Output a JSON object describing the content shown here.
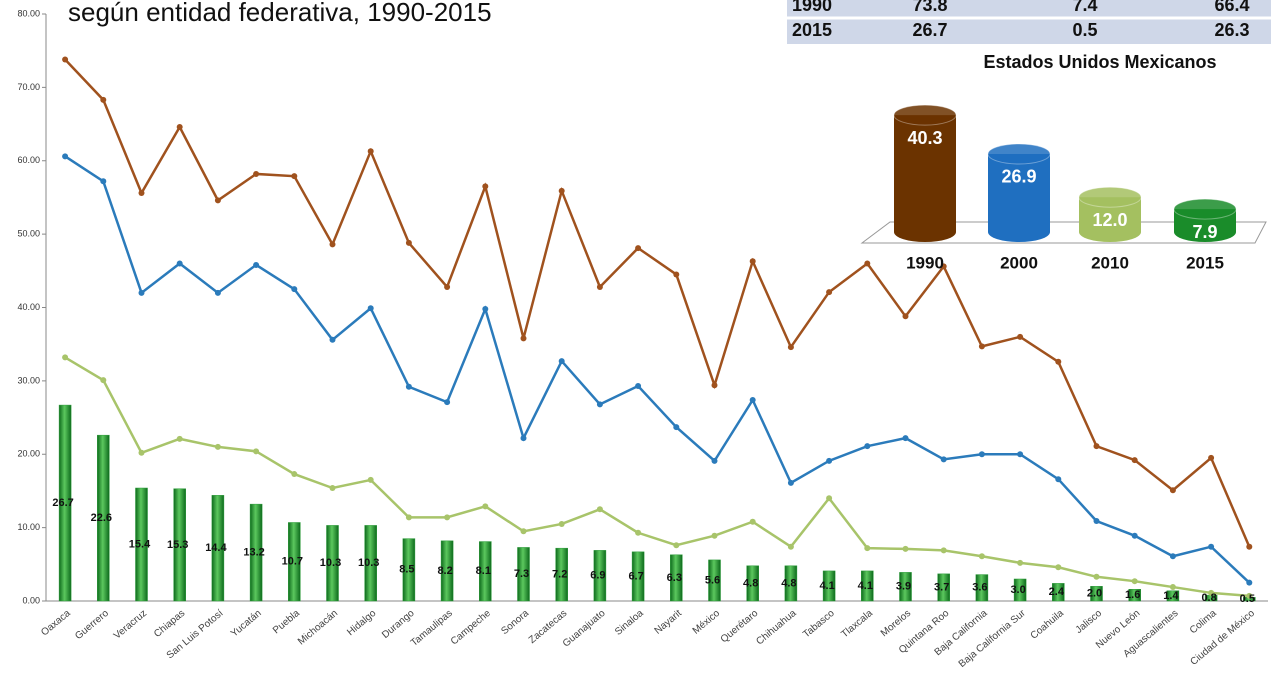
{
  "title": "según entidad federativa, 1990-2015",
  "table": {
    "rows": [
      [
        "1990",
        "73.8",
        "7.4",
        "66.4"
      ],
      [
        "2015",
        "26.7",
        "0.5",
        "26.3"
      ]
    ]
  },
  "chart_data": [
    {
      "type": "bar_line",
      "categories": [
        "Oaxaca",
        "Guerrero",
        "Veracruz",
        "Chiapas",
        "San Luis Potosí",
        "Yucatán",
        "Puebla",
        "Michoacán",
        "Hidalgo",
        "Durango",
        "Tamaulipas",
        "Campeche",
        "Sonora",
        "Zacatecas",
        "Guanajuato",
        "Sinaloa",
        "Nayarit",
        "México",
        "Querétaro",
        "Chihuahua",
        "Tabasco",
        "Tlaxcala",
        "Morelos",
        "Quintana Roo",
        "Baja California",
        "Baja California Sur",
        "Coahuila",
        "Jalisco",
        "Nuevo León",
        "Aguascalientes",
        "Colima",
        "Ciudad de México"
      ],
      "series": [
        {
          "kind": "bar",
          "color": "#2a9a38",
          "values": [
            26.7,
            22.6,
            15.4,
            15.3,
            14.4,
            13.2,
            10.7,
            10.3,
            10.3,
            8.5,
            8.2,
            8.1,
            7.3,
            7.2,
            6.9,
            6.7,
            6.3,
            5.6,
            4.8,
            4.8,
            4.1,
            4.1,
            3.9,
            3.7,
            3.6,
            3.0,
            2.4,
            2.0,
            1.6,
            1.4,
            0.8,
            0.5
          ],
          "value_labels": [
            "26.7",
            "22.6",
            "15.4",
            "15.3",
            "14.4",
            "13.2",
            "10.7",
            "10.3",
            "10.3",
            "8.5",
            "8.2",
            "8.1",
            "7.3",
            "7.2",
            "6.9",
            "6.7",
            "6.3",
            "5.6",
            "4.8",
            "4.8",
            "4.1",
            "4.1",
            "3.9",
            "3.7",
            "3.6",
            "3.0",
            "2.4",
            "2.0",
            "1.6",
            "1.4",
            "0.8",
            "0.5"
          ]
        },
        {
          "kind": "line",
          "color": "#a0521e",
          "values": [
            73.8,
            68.3,
            55.6,
            64.6,
            54.6,
            58.2,
            57.9,
            48.6,
            61.3,
            48.8,
            42.8,
            56.5,
            35.8,
            55.9,
            42.8,
            48.1,
            44.5,
            29.4,
            46.3,
            34.6,
            42.1,
            46.0,
            38.8,
            45.6,
            34.7,
            36.0,
            32.6,
            21.1,
            19.2,
            15.1,
            19.5,
            7.4
          ]
        },
        {
          "kind": "line",
          "color": "#2b7bbb",
          "values": [
            60.6,
            57.2,
            42.0,
            46.0,
            42.0,
            45.8,
            42.5,
            35.6,
            39.9,
            29.2,
            27.1,
            39.8,
            22.2,
            32.7,
            26.8,
            29.3,
            23.7,
            19.1,
            27.4,
            16.1,
            19.1,
            21.1,
            22.2,
            19.3,
            20.0,
            20.0,
            16.6,
            10.9,
            8.9,
            6.1,
            7.4,
            2.5
          ]
        },
        {
          "kind": "line",
          "color": "#a8c46a",
          "values": [
            33.2,
            30.1,
            20.2,
            22.1,
            21.0,
            20.4,
            17.3,
            15.4,
            16.5,
            11.4,
            11.4,
            12.9,
            9.5,
            10.5,
            12.5,
            9.3,
            7.6,
            8.9,
            10.8,
            7.4,
            14.0,
            7.2,
            7.1,
            6.9,
            6.1,
            5.2,
            4.6,
            3.3,
            2.7,
            1.9,
            1.1,
            0.7
          ]
        }
      ],
      "ylim": [
        0,
        80
      ],
      "yticks": [
        {
          "value": 0,
          "label": "0.00"
        },
        {
          "value": 10,
          "label": "10.00"
        },
        {
          "value": 20,
          "label": "20.00"
        },
        {
          "value": 30,
          "label": "30.00"
        },
        {
          "value": 40,
          "label": "40.00"
        },
        {
          "value": 50,
          "label": "50.00"
        },
        {
          "value": 60,
          "label": "60.00"
        },
        {
          "value": 70,
          "label": "70.00"
        },
        {
          "value": 80,
          "label": "80.00"
        }
      ],
      "grid": false
    },
    {
      "type": "cylinder",
      "title": "Estados Unidos Mexicanos",
      "categories": [
        "1990",
        "2000",
        "2010",
        "2015"
      ],
      "values": [
        40.3,
        26.9,
        12.0,
        7.9
      ],
      "value_labels": [
        "40.3",
        "26.9",
        "12.0",
        "7.9"
      ],
      "colors": [
        "#6b3300",
        "#1f6fc0",
        "#a4c060",
        "#1a8c2a"
      ]
    }
  ]
}
